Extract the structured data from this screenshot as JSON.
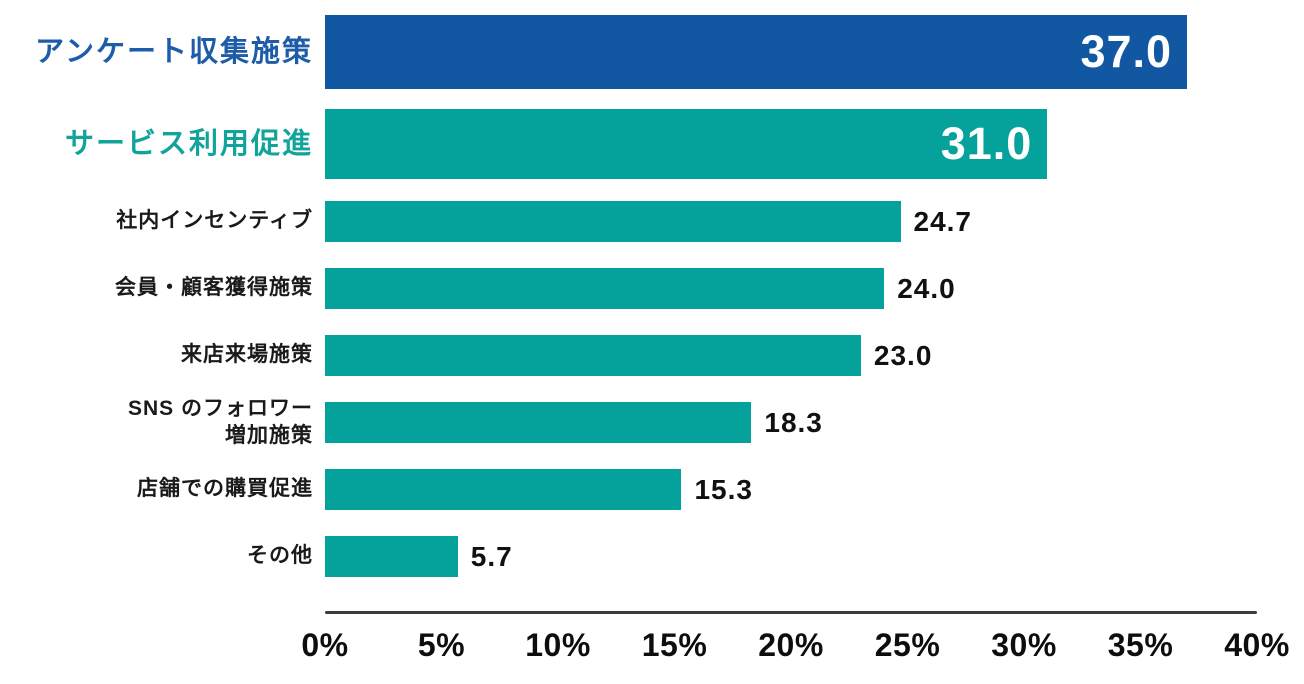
{
  "chart_data": {
    "type": "bar",
    "orientation": "horizontal",
    "title": "",
    "xlabel": "",
    "ylabel": "",
    "xlim": [
      0,
      40
    ],
    "grid": false,
    "legend": false,
    "x_axis": {
      "min": 0,
      "max": 40,
      "tick_step": 5,
      "tick_labels": [
        "0%",
        "5%",
        "10%",
        "15%",
        "20%",
        "25%",
        "30%",
        "35%",
        "40%"
      ]
    },
    "rows": [
      {
        "label": "アンケート収集施策",
        "value": 37.0,
        "value_label": "37.0",
        "emphasis": "primary",
        "value_position": "inside"
      },
      {
        "label": "サービス利用促進",
        "value": 31.0,
        "value_label": "31.0",
        "emphasis": "secondary",
        "value_position": "inside"
      },
      {
        "label": "社内インセンティブ",
        "value": 24.7,
        "value_label": "24.7",
        "emphasis": "normal",
        "value_position": "outside"
      },
      {
        "label": "会員・顧客獲得施策",
        "value": 24.0,
        "value_label": "24.0",
        "emphasis": "normal",
        "value_position": "outside"
      },
      {
        "label": "来店来場施策",
        "value": 23.0,
        "value_label": "23.0",
        "emphasis": "normal",
        "value_position": "outside"
      },
      {
        "label": "SNS のフォロワー\n増加施策",
        "value": 18.3,
        "value_label": "18.3",
        "emphasis": "normal",
        "value_position": "outside"
      },
      {
        "label": "店舗での購買促進",
        "value": 15.3,
        "value_label": "15.3",
        "emphasis": "normal",
        "value_position": "outside"
      },
      {
        "label": "その他",
        "value": 5.7,
        "value_label": "5.7",
        "emphasis": "normal",
        "value_position": "outside"
      }
    ],
    "colors": {
      "bar_primary": "#1257A2",
      "bar_secondary": "#04A29A",
      "label_primary": "#1D5CA8",
      "label_secondary": "#12A49B",
      "value_inside": "#FFFFFF",
      "value_outside": "#111111",
      "axis_line": "#3C3C3C",
      "tick_text": "#0D0D0D"
    }
  }
}
